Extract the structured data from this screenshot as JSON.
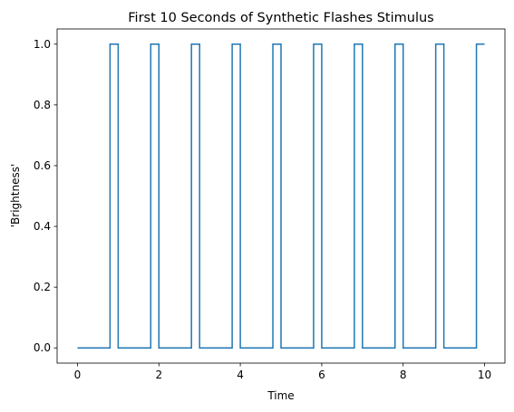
{
  "chart_data": {
    "type": "line",
    "title": "First 10 Seconds of Synthetic Flashes Stimulus",
    "xlabel": "Time",
    "ylabel": "'Brightness'",
    "xlim": [
      -0.5,
      10.5
    ],
    "ylim": [
      -0.05,
      1.05
    ],
    "xticks": [
      0,
      2,
      4,
      6,
      8,
      10
    ],
    "yticks": [
      0.0,
      0.2,
      0.4,
      0.6,
      0.8,
      1.0
    ],
    "xtick_labels": [
      "0",
      "2",
      "4",
      "6",
      "8",
      "10"
    ],
    "ytick_labels": [
      "0.0",
      "0.2",
      "0.4",
      "0.6",
      "0.8",
      "1.0"
    ],
    "grid": false,
    "series": [
      {
        "color": "#1f77b4",
        "x": [
          0,
          0.8,
          0.8,
          1.0,
          1.0,
          1.8,
          1.8,
          2.0,
          2.0,
          2.8,
          2.8,
          3.0,
          3.0,
          3.8,
          3.8,
          4.0,
          4.0,
          4.8,
          4.8,
          5.0,
          5.0,
          5.8,
          5.8,
          6.0,
          6.0,
          6.8,
          6.8,
          7.0,
          7.0,
          7.8,
          7.8,
          8.0,
          8.0,
          8.8,
          8.8,
          9.0,
          9.0,
          9.8,
          9.8,
          10.0
        ],
        "y": [
          0,
          0,
          1,
          1,
          0,
          0,
          1,
          1,
          0,
          0,
          1,
          1,
          0,
          0,
          1,
          1,
          0,
          0,
          1,
          1,
          0,
          0,
          1,
          1,
          0,
          0,
          1,
          1,
          0,
          0,
          1,
          1,
          0,
          0,
          1,
          1,
          0,
          0,
          1,
          1
        ]
      }
    ]
  }
}
